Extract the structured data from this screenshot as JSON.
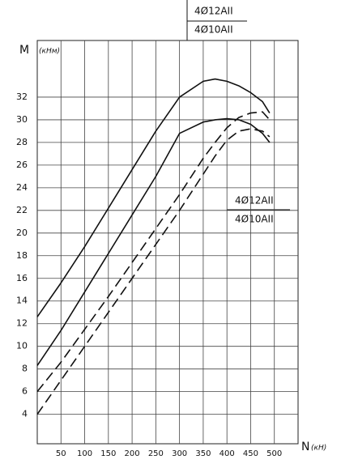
{
  "chart_data": {
    "type": "line",
    "y_label": "M",
    "y_unit": "(кНм)",
    "x_label": "N",
    "x_unit": "(кН)",
    "x": [
      0,
      50,
      100,
      150,
      200,
      250,
      300,
      350,
      375,
      400,
      425,
      450,
      475,
      490
    ],
    "series": [
      {
        "name": "4Ø12AII",
        "color": "#111111",
        "dash": false,
        "values": [
          12.6,
          15.6,
          18.8,
          22.2,
          25.6,
          29,
          32,
          33.4,
          33.6,
          33.4,
          33.0,
          32.4,
          31.6,
          30.6
        ]
      },
      {
        "name": "4Ø10AII",
        "color": "#111111",
        "dash": false,
        "values": [
          8.3,
          11.4,
          14.8,
          18.2,
          21.6,
          25,
          28.8,
          29.8,
          30.0,
          30.1,
          30.0,
          29.6,
          28.8,
          28
        ]
      },
      {
        "name": "4Ø12AII",
        "color": "#111111",
        "dash": true,
        "values": [
          6,
          8.6,
          11.5,
          14.4,
          17.4,
          20.4,
          23.4,
          26.6,
          28.0,
          29.3,
          30.2,
          30.6,
          30.7,
          30
        ]
      },
      {
        "name": "4Ø10AII",
        "color": "#111111",
        "dash": true,
        "values": [
          4,
          7,
          10,
          13,
          16,
          19,
          22,
          25.2,
          26.8,
          28.2,
          29.0,
          29.2,
          29.0,
          28.5
        ]
      }
    ],
    "xlim": [
      0,
      550
    ],
    "ylim": [
      1.4,
      37
    ],
    "xticks": [
      50,
      100,
      150,
      200,
      250,
      300,
      350,
      400,
      450,
      500
    ],
    "yticks": [
      4,
      6,
      8,
      10,
      12,
      14,
      16,
      18,
      20,
      22,
      24,
      26,
      28,
      30,
      32
    ],
    "grid": true
  }
}
